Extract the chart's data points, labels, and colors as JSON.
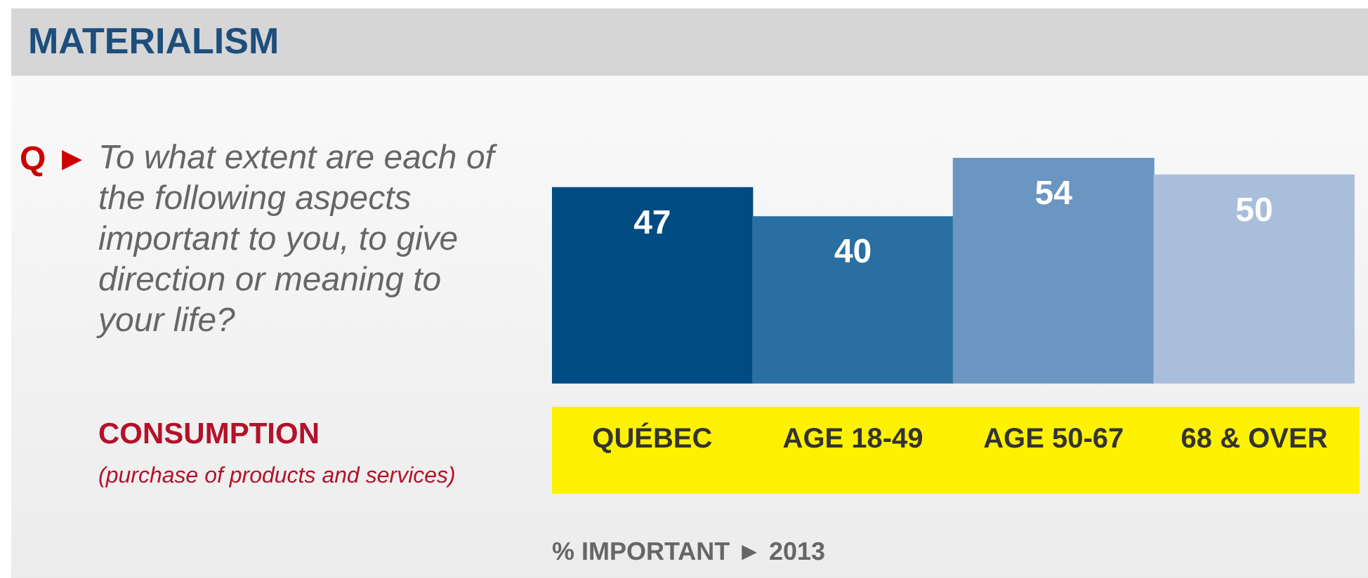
{
  "chart_data": {
    "type": "bar",
    "title": "MATERIALISM",
    "xlabel": "% IMPORTANT ► 2013",
    "categories": [
      "QUÉBEC",
      "AGE 18-49",
      "AGE 50-67",
      "68 & OVER"
    ],
    "values": [
      47,
      40,
      54,
      50
    ],
    "colors": [
      "#004b82",
      "#2a6fa2",
      "#6a96c1",
      "#a8bedb"
    ],
    "data_labels": true,
    "grid": false,
    "legend": false,
    "annotations": [
      "Q ►",
      "To what extent are each of the following aspects important to you, to give direction or meaning to your life?",
      "CONSUMPTION",
      "(purchase of products and services)"
    ]
  }
}
